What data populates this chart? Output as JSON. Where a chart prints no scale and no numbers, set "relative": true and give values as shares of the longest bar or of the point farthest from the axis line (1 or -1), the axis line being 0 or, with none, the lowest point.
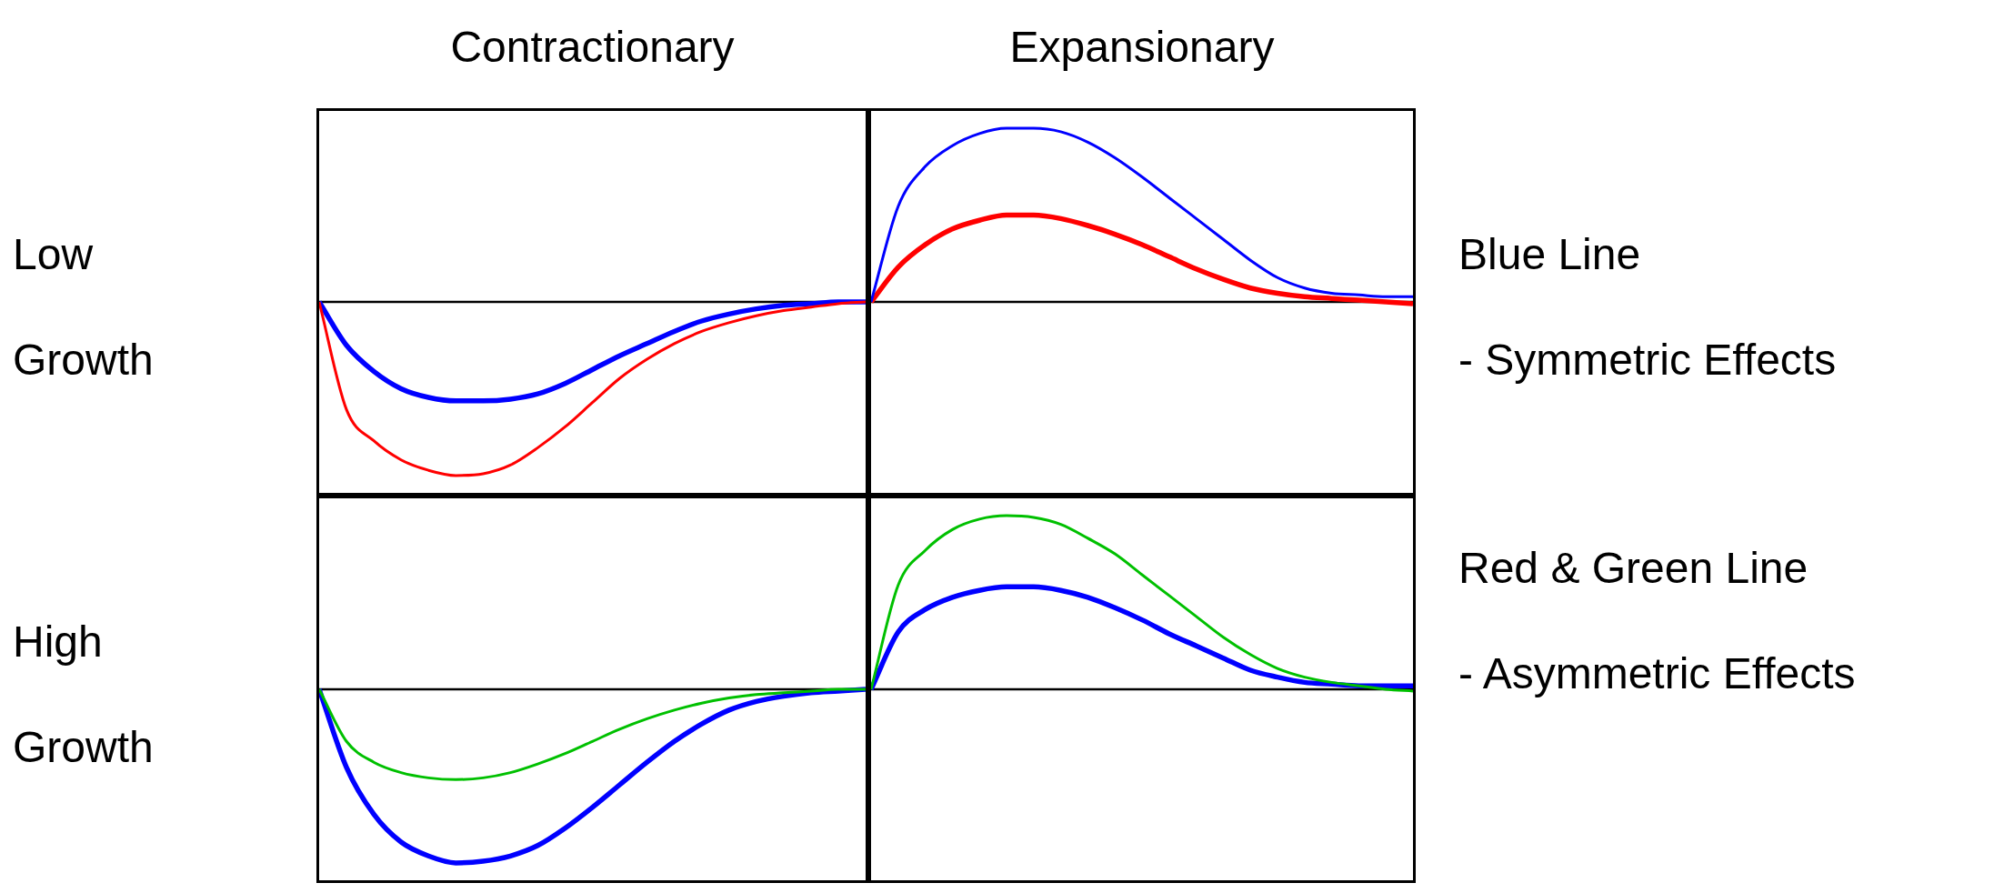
{
  "chart_data": [
    {
      "type": "line",
      "title": "Contractionary",
      "ylabel": "Low Growth",
      "relative": true,
      "categories": [
        null,
        null,
        null,
        null,
        null,
        null,
        null,
        null,
        null,
        null,
        null,
        null,
        null,
        null,
        null,
        null,
        null,
        null,
        null,
        null,
        null
      ],
      "series": [
        {
          "color": "#ff0000",
          "values": [
            0,
            -0.62,
            -0.8,
            -0.91,
            -0.97,
            -1,
            -0.99,
            -0.94,
            -0.84,
            -0.72,
            -0.58,
            -0.44,
            -0.33,
            -0.24,
            -0.17,
            -0.12,
            -0.08,
            -0.05,
            -0.03,
            -0.01,
            0
          ]
        },
        {
          "color": "#0000ff",
          "values": [
            0,
            -0.25,
            -0.4,
            -0.5,
            -0.55,
            -0.57,
            -0.57,
            -0.56,
            -0.53,
            -0.47,
            -0.39,
            -0.31,
            -0.24,
            -0.17,
            -0.11,
            -0.07,
            -0.04,
            -0.02,
            -0.01,
            0,
            0
          ]
        }
      ]
    },
    {
      "type": "line",
      "title": "Expansionary",
      "relative": true,
      "categories": [
        null,
        null,
        null,
        null,
        null,
        null,
        null,
        null,
        null,
        null,
        null,
        null,
        null,
        null,
        null,
        null,
        null,
        null,
        null,
        null,
        null
      ],
      "series": [
        {
          "color": "#0000ff",
          "values": [
            0,
            0.55,
            0.78,
            0.9,
            0.97,
            1,
            1,
            0.98,
            0.92,
            0.83,
            0.72,
            0.6,
            0.48,
            0.36,
            0.24,
            0.14,
            0.08,
            0.05,
            0.04,
            0.03,
            0.03
          ]
        },
        {
          "color": "#ff0000",
          "values": [
            0,
            0.2,
            0.33,
            0.42,
            0.47,
            0.5,
            0.5,
            0.48,
            0.44,
            0.39,
            0.33,
            0.26,
            0.19,
            0.13,
            0.08,
            0.05,
            0.03,
            0.02,
            0.01,
            0,
            -0.01
          ]
        }
      ]
    },
    {
      "type": "line",
      "ylabel": "High Growth",
      "relative": true,
      "categories": [
        null,
        null,
        null,
        null,
        null,
        null,
        null,
        null,
        null,
        null,
        null,
        null,
        null,
        null,
        null,
        null,
        null,
        null,
        null,
        null,
        null
      ],
      "series": [
        {
          "color": "#00c000",
          "values": [
            0,
            -0.3,
            -0.42,
            -0.48,
            -0.51,
            -0.52,
            -0.51,
            -0.48,
            -0.43,
            -0.37,
            -0.3,
            -0.23,
            -0.17,
            -0.12,
            -0.08,
            -0.05,
            -0.03,
            -0.02,
            -0.01,
            0,
            0
          ]
        },
        {
          "color": "#0000ff",
          "values": [
            0,
            -0.45,
            -0.72,
            -0.88,
            -0.96,
            -1,
            -0.99,
            -0.96,
            -0.9,
            -0.8,
            -0.68,
            -0.55,
            -0.42,
            -0.3,
            -0.2,
            -0.12,
            -0.07,
            -0.04,
            -0.02,
            -0.01,
            0
          ]
        }
      ]
    },
    {
      "type": "line",
      "relative": true,
      "categories": [
        null,
        null,
        null,
        null,
        null,
        null,
        null,
        null,
        null,
        null,
        null,
        null,
        null,
        null,
        null,
        null,
        null,
        null,
        null,
        null,
        null
      ],
      "series": [
        {
          "color": "#00c000",
          "values": [
            0,
            0.6,
            0.8,
            0.92,
            0.98,
            1,
            0.99,
            0.95,
            0.87,
            0.78,
            0.66,
            0.54,
            0.42,
            0.3,
            0.2,
            0.12,
            0.07,
            0.04,
            0.02,
            0,
            -0.01
          ]
        },
        {
          "color": "#0000ff",
          "values": [
            0,
            0.33,
            0.46,
            0.53,
            0.57,
            0.59,
            0.59,
            0.57,
            0.53,
            0.47,
            0.4,
            0.32,
            0.25,
            0.18,
            0.11,
            0.07,
            0.04,
            0.03,
            0.02,
            0.02,
            0.02
          ]
        }
      ]
    },
    {
      "type": "other",
      "annotations": [
        "Blue Line",
        "- Symmetric Effects",
        "Red & Green Line",
        "- Asymmetric Effects"
      ]
    }
  ]
}
